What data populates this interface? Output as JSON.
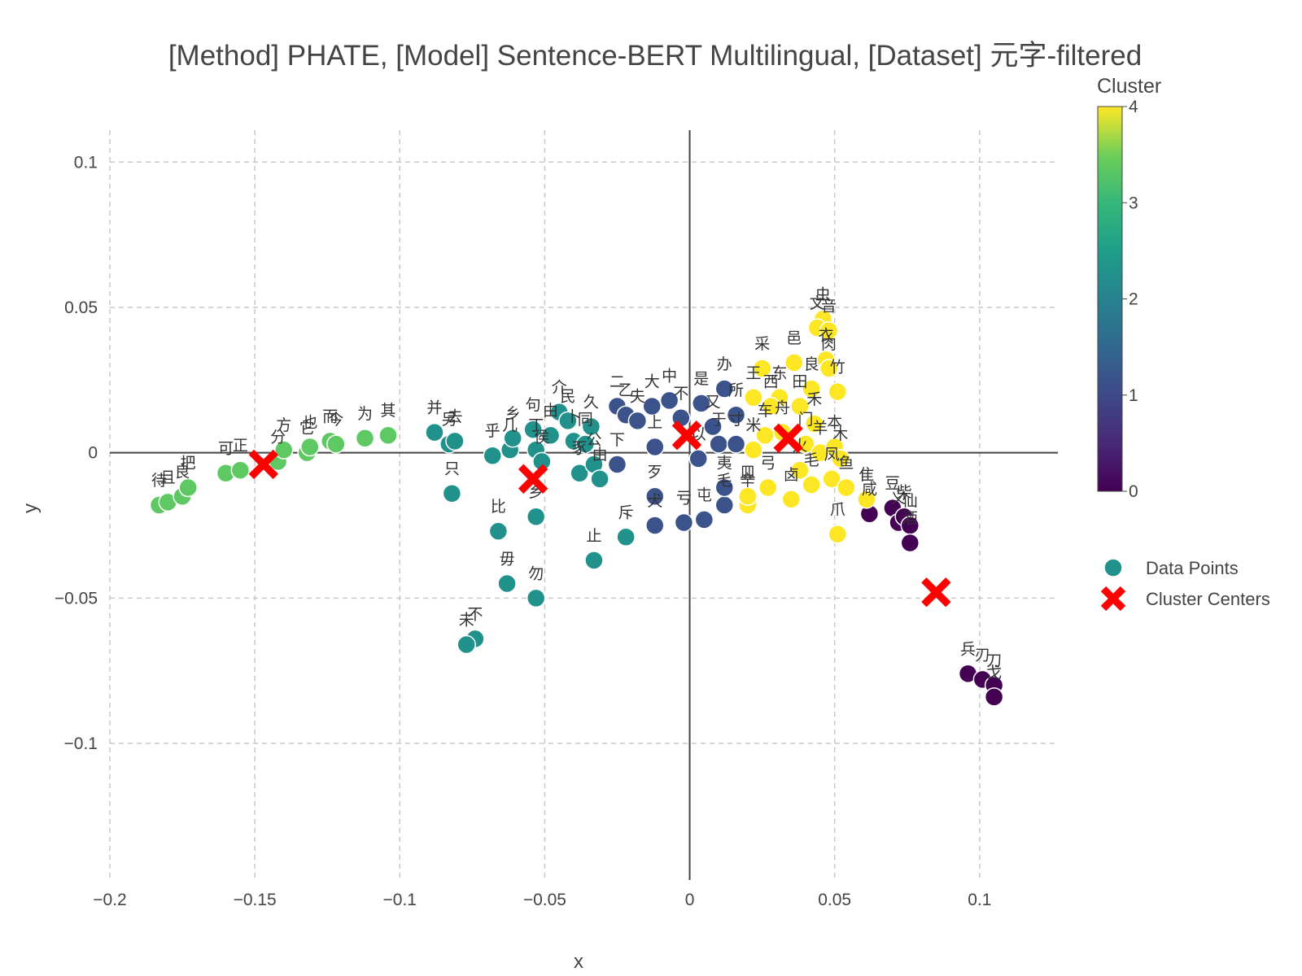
{
  "chart_data": {
    "type": "scatter",
    "title": "[Method] PHATE, [Model] Sentence-BERT Multilingual, [Dataset] 元字-filtered",
    "xlabel": "x",
    "ylabel": "y",
    "xlim": [
      -0.2,
      0.127
    ],
    "ylim": [
      -0.147,
      0.111
    ],
    "x_ticks": [
      -0.2,
      -0.15,
      -0.1,
      -0.05,
      0,
      0.05,
      0.1
    ],
    "x_tick_labels": [
      "−0.2",
      "−0.15",
      "−0.1",
      "−0.05",
      "0",
      "0.05",
      "0.1"
    ],
    "y_ticks": [
      0.1,
      0.05,
      0,
      -0.05,
      -0.1
    ],
    "y_tick_labels": [
      "0.1",
      "0.05",
      "0",
      "−0.05",
      "−0.1"
    ],
    "grid": true,
    "colorbar": {
      "title": "Cluster",
      "min": 0,
      "max": 4,
      "ticks": [
        0,
        1,
        2,
        3,
        4
      ],
      "tick_labels": [
        "0",
        "1",
        "2",
        "3",
        "4"
      ],
      "colorscale": "viridis"
    },
    "legend": {
      "position": "right",
      "entries": [
        {
          "name": "Data Points",
          "symbol": "circle",
          "color": "#21918c"
        },
        {
          "name": "Cluster Centers",
          "symbol": "x",
          "color": "#ff0000"
        }
      ]
    },
    "cluster_colors": [
      "#440154",
      "#3b528b",
      "#21918c",
      "#5ec962",
      "#fde725"
    ],
    "points": [
      {
        "x": -0.183,
        "y": -0.018,
        "c": 3,
        "label": "待"
      },
      {
        "x": -0.18,
        "y": -0.017,
        "c": 3,
        "label": "且"
      },
      {
        "x": -0.175,
        "y": -0.015,
        "c": 3,
        "label": "良"
      },
      {
        "x": -0.173,
        "y": -0.012,
        "c": 3,
        "label": "把"
      },
      {
        "x": -0.16,
        "y": -0.007,
        "c": 3,
        "label": "可"
      },
      {
        "x": -0.155,
        "y": -0.006,
        "c": 3,
        "label": "正"
      },
      {
        "x": -0.142,
        "y": -0.003,
        "c": 3,
        "label": "分"
      },
      {
        "x": -0.14,
        "y": 0.001,
        "c": 3,
        "label": "方"
      },
      {
        "x": -0.132,
        "y": 0.0,
        "c": 3,
        "label": "它"
      },
      {
        "x": -0.131,
        "y": 0.002,
        "c": 3,
        "label": "也"
      },
      {
        "x": -0.124,
        "y": 0.004,
        "c": 3,
        "label": "而"
      },
      {
        "x": -0.122,
        "y": 0.003,
        "c": 3,
        "label": "今"
      },
      {
        "x": -0.112,
        "y": 0.005,
        "c": 3,
        "label": "为"
      },
      {
        "x": -0.104,
        "y": 0.006,
        "c": 3,
        "label": "其"
      },
      {
        "x": -0.088,
        "y": 0.007,
        "c": 2,
        "label": "并"
      },
      {
        "x": -0.083,
        "y": 0.003,
        "c": 2,
        "label": "另"
      },
      {
        "x": -0.081,
        "y": 0.004,
        "c": 2,
        "label": "去"
      },
      {
        "x": -0.082,
        "y": -0.014,
        "c": 2,
        "label": "只"
      },
      {
        "x": -0.068,
        "y": -0.001,
        "c": 2,
        "label": "乎"
      },
      {
        "x": -0.062,
        "y": 0.001,
        "c": 2,
        "label": "几"
      },
      {
        "x": -0.061,
        "y": 0.005,
        "c": 2,
        "label": "乡"
      },
      {
        "x": -0.054,
        "y": 0.008,
        "c": 2,
        "label": "句"
      },
      {
        "x": -0.053,
        "y": 0.001,
        "c": 2,
        "label": "丁"
      },
      {
        "x": -0.051,
        "y": -0.003,
        "c": 2,
        "label": "侯"
      },
      {
        "x": -0.048,
        "y": 0.006,
        "c": 2,
        "label": "由"
      },
      {
        "x": -0.045,
        "y": 0.014,
        "c": 2,
        "label": "介"
      },
      {
        "x": -0.042,
        "y": 0.011,
        "c": 2,
        "label": "民"
      },
      {
        "x": -0.04,
        "y": 0.004,
        "c": 2,
        "label": "卜"
      },
      {
        "x": -0.038,
        "y": -0.007,
        "c": 2,
        "label": "豕"
      },
      {
        "x": -0.036,
        "y": 0.003,
        "c": 2,
        "label": "同"
      },
      {
        "x": -0.034,
        "y": 0.009,
        "c": 2,
        "label": "久"
      },
      {
        "x": -0.033,
        "y": -0.004,
        "c": 2,
        "label": "公"
      },
      {
        "x": -0.031,
        "y": -0.009,
        "c": 2,
        "label": "由"
      },
      {
        "x": -0.066,
        "y": -0.027,
        "c": 2,
        "label": "比"
      },
      {
        "x": -0.053,
        "y": -0.022,
        "c": 2,
        "label": "乡"
      },
      {
        "x": -0.063,
        "y": -0.045,
        "c": 2,
        "label": "毋"
      },
      {
        "x": -0.053,
        "y": -0.05,
        "c": 2,
        "label": "勿"
      },
      {
        "x": -0.033,
        "y": -0.037,
        "c": 2,
        "label": "止"
      },
      {
        "x": -0.074,
        "y": -0.064,
        "c": 2,
        "label": "不"
      },
      {
        "x": -0.077,
        "y": -0.066,
        "c": 2,
        "label": "未"
      },
      {
        "x": -0.022,
        "y": -0.029,
        "c": 2,
        "label": "斥"
      },
      {
        "x": -0.025,
        "y": 0.016,
        "c": 1,
        "label": "二"
      },
      {
        "x": -0.022,
        "y": 0.013,
        "c": 1,
        "label": "乙"
      },
      {
        "x": -0.018,
        "y": 0.011,
        "c": 1,
        "label": "夫"
      },
      {
        "x": -0.013,
        "y": 0.016,
        "c": 1,
        "label": "大"
      },
      {
        "x": -0.012,
        "y": 0.002,
        "c": 1,
        "label": "上"
      },
      {
        "x": -0.025,
        "y": -0.004,
        "c": 1,
        "label": "下"
      },
      {
        "x": -0.007,
        "y": 0.018,
        "c": 1,
        "label": "中"
      },
      {
        "x": -0.003,
        "y": 0.012,
        "c": 1,
        "label": "不"
      },
      {
        "x": 0.004,
        "y": 0.017,
        "c": 1,
        "label": "是"
      },
      {
        "x": 0.008,
        "y": 0.009,
        "c": 1,
        "label": "又"
      },
      {
        "x": 0.012,
        "y": 0.022,
        "c": 1,
        "label": "办"
      },
      {
        "x": 0.016,
        "y": 0.013,
        "c": 1,
        "label": "所"
      },
      {
        "x": 0.003,
        "y": -0.002,
        "c": 1,
        "label": "以"
      },
      {
        "x": 0.01,
        "y": 0.003,
        "c": 1,
        "label": "于"
      },
      {
        "x": -0.012,
        "y": -0.015,
        "c": 1,
        "label": "歹"
      },
      {
        "x": -0.012,
        "y": -0.025,
        "c": 1,
        "label": "犬"
      },
      {
        "x": -0.002,
        "y": -0.024,
        "c": 1,
        "label": "亏"
      },
      {
        "x": 0.005,
        "y": -0.023,
        "c": 1,
        "label": "屯"
      },
      {
        "x": 0.012,
        "y": -0.018,
        "c": 1,
        "label": "毛"
      },
      {
        "x": 0.012,
        "y": -0.012,
        "c": 1,
        "label": "夷"
      },
      {
        "x": 0.016,
        "y": 0.003,
        "c": 1,
        "label": "寸"
      },
      {
        "x": 0.062,
        "y": -0.021,
        "c": 0,
        "label": "咸"
      },
      {
        "x": 0.07,
        "y": -0.019,
        "c": 0,
        "label": "豆"
      },
      {
        "x": 0.072,
        "y": -0.024,
        "c": 0,
        "label": "义"
      },
      {
        "x": 0.074,
        "y": -0.022,
        "c": 0,
        "label": "柴"
      },
      {
        "x": 0.076,
        "y": -0.025,
        "c": 0,
        "label": "仙"
      },
      {
        "x": 0.076,
        "y": -0.031,
        "c": 0,
        "label": "酒"
      },
      {
        "x": 0.096,
        "y": -0.076,
        "c": 0,
        "label": "兵"
      },
      {
        "x": 0.101,
        "y": -0.078,
        "c": 0,
        "label": "刃"
      },
      {
        "x": 0.105,
        "y": -0.08,
        "c": 0,
        "label": "刀"
      },
      {
        "x": 0.105,
        "y": -0.084,
        "c": 0,
        "label": "戈"
      },
      {
        "x": 0.046,
        "y": 0.046,
        "c": 4,
        "label": "虫"
      },
      {
        "x": 0.044,
        "y": 0.043,
        "c": 4,
        "label": "文"
      },
      {
        "x": 0.048,
        "y": 0.042,
        "c": 4,
        "label": "音"
      },
      {
        "x": 0.036,
        "y": 0.031,
        "c": 4,
        "label": "邑"
      },
      {
        "x": 0.047,
        "y": 0.032,
        "c": 4,
        "label": "衣"
      },
      {
        "x": 0.048,
        "y": 0.029,
        "c": 4,
        "label": "肉"
      },
      {
        "x": 0.025,
        "y": 0.029,
        "c": 4,
        "label": "采"
      },
      {
        "x": 0.051,
        "y": 0.021,
        "c": 4,
        "label": "竹"
      },
      {
        "x": 0.042,
        "y": 0.022,
        "c": 4,
        "label": "良"
      },
      {
        "x": 0.031,
        "y": 0.019,
        "c": 4,
        "label": "东"
      },
      {
        "x": 0.028,
        "y": 0.016,
        "c": 4,
        "label": "西"
      },
      {
        "x": 0.022,
        "y": 0.019,
        "c": 4,
        "label": "王"
      },
      {
        "x": 0.038,
        "y": 0.016,
        "c": 4,
        "label": "田"
      },
      {
        "x": 0.043,
        "y": 0.01,
        "c": 4,
        "label": "禾"
      },
      {
        "x": 0.032,
        "y": 0.007,
        "c": 4,
        "label": "舟"
      },
      {
        "x": 0.026,
        "y": 0.006,
        "c": 4,
        "label": "车"
      },
      {
        "x": 0.022,
        "y": 0.001,
        "c": 4,
        "label": "米"
      },
      {
        "x": 0.04,
        "y": 0.003,
        "c": 4,
        "label": "门"
      },
      {
        "x": 0.045,
        "y": 0.0,
        "c": 4,
        "label": "羊"
      },
      {
        "x": 0.05,
        "y": 0.002,
        "c": 4,
        "label": "本"
      },
      {
        "x": 0.052,
        "y": -0.002,
        "c": 4,
        "label": "木"
      },
      {
        "x": 0.049,
        "y": -0.009,
        "c": 4,
        "label": "凤"
      },
      {
        "x": 0.054,
        "y": -0.012,
        "c": 4,
        "label": "鱼"
      },
      {
        "x": 0.061,
        "y": -0.016,
        "c": 4,
        "label": "隹"
      },
      {
        "x": 0.02,
        "y": -0.018,
        "c": 4,
        "label": "辛"
      },
      {
        "x": 0.02,
        "y": -0.015,
        "c": 4,
        "label": "皿"
      },
      {
        "x": 0.027,
        "y": -0.012,
        "c": 4,
        "label": "弓"
      },
      {
        "x": 0.035,
        "y": -0.016,
        "c": 4,
        "label": "卤"
      },
      {
        "x": 0.038,
        "y": -0.006,
        "c": 4,
        "label": "火"
      },
      {
        "x": 0.042,
        "y": -0.011,
        "c": 4,
        "label": "毛"
      },
      {
        "x": 0.051,
        "y": -0.028,
        "c": 4,
        "label": "爪"
      }
    ],
    "cluster_centers": [
      {
        "x": 0.085,
        "y": -0.048,
        "c": 0
      },
      {
        "x": -0.001,
        "y": 0.006,
        "c": 1
      },
      {
        "x": -0.054,
        "y": -0.009,
        "c": 2
      },
      {
        "x": -0.147,
        "y": -0.004,
        "c": 3
      },
      {
        "x": 0.034,
        "y": 0.005,
        "c": 4
      }
    ]
  }
}
